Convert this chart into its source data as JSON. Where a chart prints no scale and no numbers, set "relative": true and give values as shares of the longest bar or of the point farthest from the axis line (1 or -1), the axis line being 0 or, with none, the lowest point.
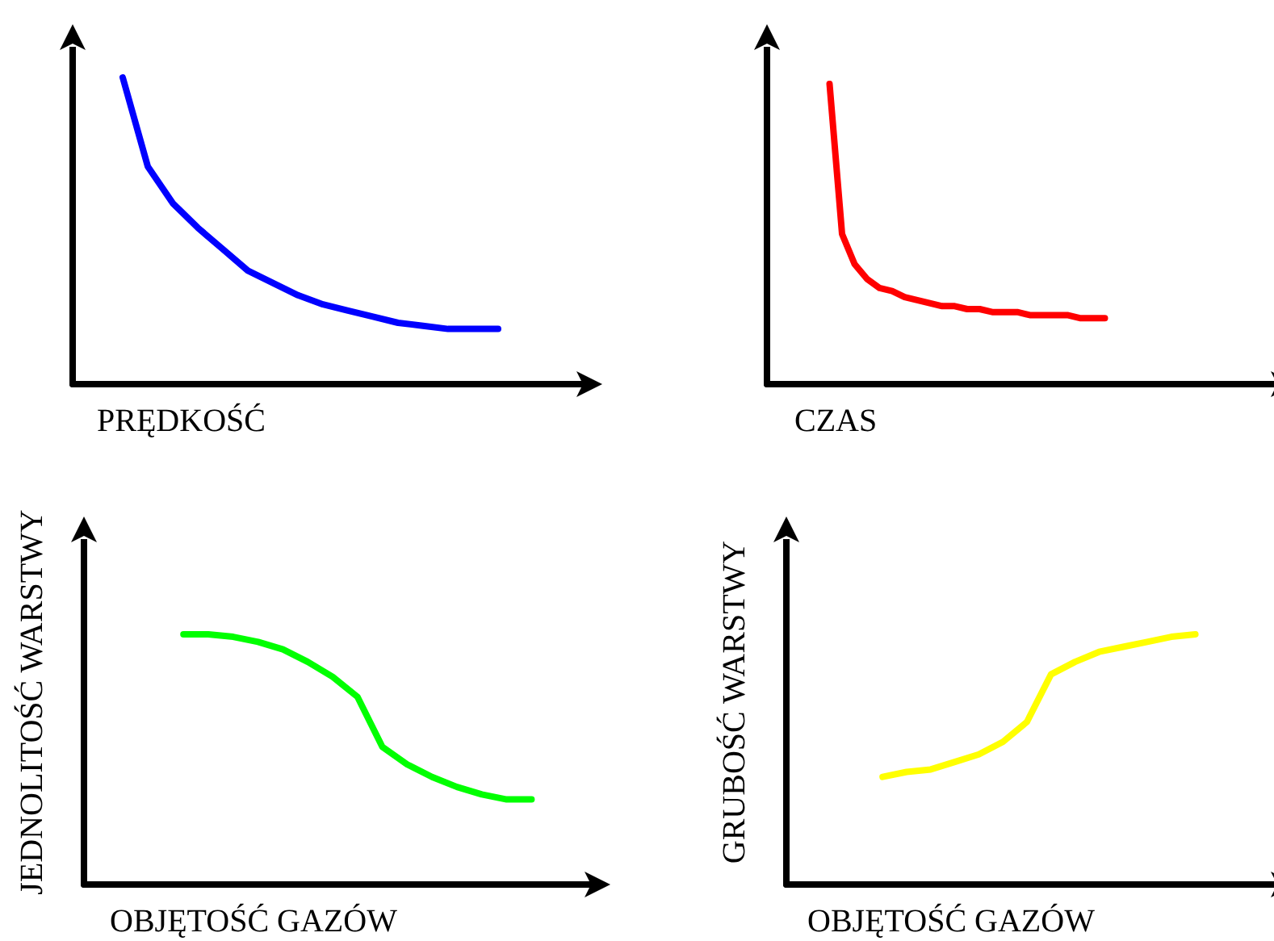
{
  "chart_data": [
    {
      "type": "line",
      "relative": true,
      "xlabel": "PRĘDKOŚĆ",
      "grid": false,
      "categories": [
        null,
        null,
        null,
        null,
        null,
        null,
        null,
        null,
        null,
        null,
        null,
        null,
        null,
        null,
        null,
        null,
        null,
        null,
        null,
        null,
        null
      ],
      "series": [
        {
          "color": "#0000ff",
          "values": [
            null,
            null,
            1.0,
            0.71,
            0.59,
            0.51,
            0.44,
            0.37,
            0.33,
            0.29,
            0.26,
            0.24,
            0.22,
            0.2,
            0.19,
            0.18,
            0.18,
            0.18,
            null,
            null,
            null
          ]
        }
      ]
    },
    {
      "type": "line",
      "relative": true,
      "xlabel": "CZAS",
      "grid": false,
      "categories": [
        null,
        null,
        null,
        null,
        null,
        null,
        null,
        null,
        null,
        null,
        null,
        null,
        null,
        null,
        null,
        null,
        null,
        null,
        null,
        null,
        null,
        null,
        null,
        null,
        null,
        null,
        null,
        null,
        null,
        null,
        null,
        null,
        null,
        null,
        null,
        null,
        null,
        null,
        null,
        null,
        null
      ],
      "series": [
        {
          "color": "#ff0000",
          "values": [
            null,
            null,
            null,
            null,
            null,
            1.0,
            0.5,
            0.4,
            0.35,
            0.32,
            0.31,
            0.29,
            0.28,
            0.27,
            0.26,
            0.26,
            0.25,
            0.25,
            0.24,
            0.24,
            0.24,
            0.23,
            0.23,
            0.23,
            0.23,
            0.22,
            0.22,
            0.22,
            null,
            null,
            null,
            null,
            null,
            null,
            null,
            null,
            null,
            null,
            null,
            null,
            null
          ]
        }
      ]
    },
    {
      "type": "line",
      "relative": true,
      "xlabel": "OBJĘTOŚĆ GAZÓW",
      "ylabel": "JEDNOLITOŚĆ WARSTWY",
      "grid": false,
      "categories": [
        null,
        null,
        null,
        null,
        null,
        null,
        null,
        null,
        null,
        null,
        null,
        null,
        null,
        null,
        null,
        null,
        null,
        null,
        null,
        null,
        null
      ],
      "series": [
        {
          "color": "#00ff00",
          "values": [
            null,
            null,
            null,
            null,
            1.0,
            1.0,
            0.99,
            0.97,
            0.94,
            0.89,
            0.83,
            0.75,
            0.55,
            0.48,
            0.43,
            0.39,
            0.36,
            0.34,
            0.34,
            null,
            null
          ]
        }
      ]
    },
    {
      "type": "line",
      "relative": true,
      "xlabel": "OBJĘTOŚĆ GAZÓW",
      "ylabel": "GRUBOŚĆ WARSTWY",
      "grid": false,
      "categories": [
        null,
        null,
        null,
        null,
        null,
        null,
        null,
        null,
        null,
        null,
        null,
        null,
        null,
        null,
        null,
        null,
        null,
        null,
        null,
        null,
        null
      ],
      "series": [
        {
          "color": "#ffff00",
          "values": [
            null,
            null,
            null,
            null,
            0.43,
            0.45,
            0.46,
            0.49,
            0.52,
            0.57,
            0.65,
            0.84,
            0.89,
            0.93,
            0.95,
            0.97,
            0.99,
            1.0,
            null,
            null,
            null
          ]
        }
      ]
    }
  ]
}
